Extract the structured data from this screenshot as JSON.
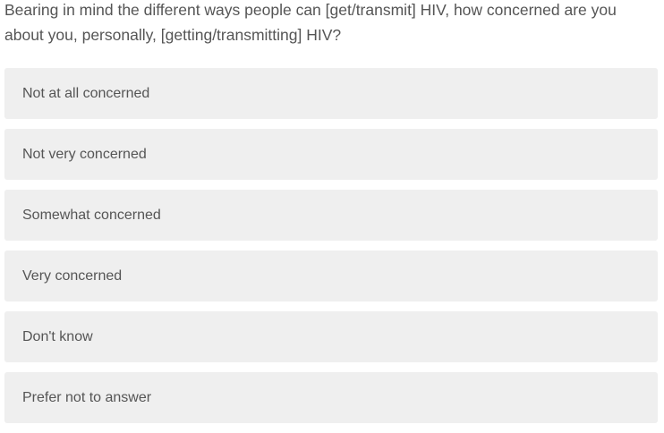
{
  "question": "Bearing in mind the different ways people can [get/transmit] HIV, how concerned are you about you, personally, [getting/transmitting] HIV?",
  "options": [
    {
      "label": "Not at all concerned"
    },
    {
      "label": "Not very concerned"
    },
    {
      "label": "Somewhat concerned"
    },
    {
      "label": "Very concerned"
    },
    {
      "label": "Don't know"
    },
    {
      "label": "Prefer not to answer"
    }
  ],
  "colors": {
    "option_bg": "#efefef",
    "text": "#555555"
  }
}
